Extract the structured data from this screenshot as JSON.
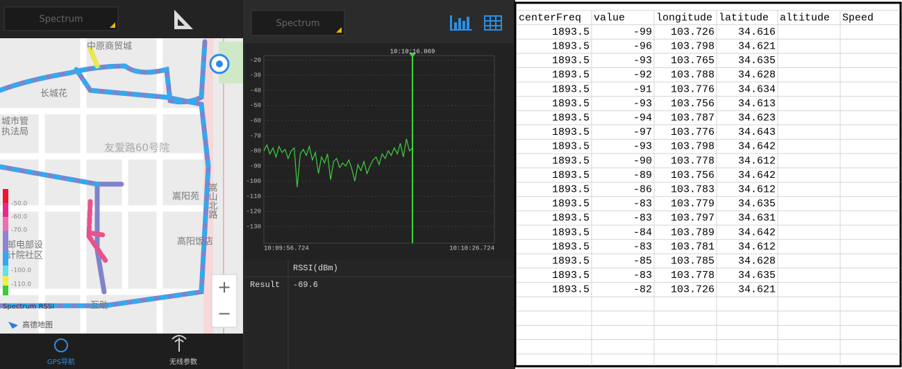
{
  "map_panel": {
    "dropdown": "Spectrum",
    "labels": [
      "中原商贸城",
      "长城花",
      "城市管",
      "执法局",
      "友爱路60号院",
      "嵩阳苑",
      "嵩山北路",
      "高阳饭店",
      "邮电部设",
      "计院社区",
      "互助"
    ],
    "legend": {
      "title": "Spectrum RSSI",
      "labels": [
        "-50.0",
        "-60.0",
        "-70.0",
        "-100.0",
        "-110.0"
      ]
    },
    "provider": "高德地图",
    "nav": [
      "GPS导航",
      "无线参数"
    ]
  },
  "spectrum_panel": {
    "dropdown": "Spectrum",
    "chart_data": {
      "type": "line",
      "color": "#3fd13f",
      "ylim": [
        -141,
        -17
      ],
      "yticks": [
        -20,
        -30,
        -40,
        -50,
        -60,
        -70,
        -80,
        -90,
        -100,
        -110,
        -120,
        -130
      ],
      "grid": true,
      "x_labels": [
        "10:09:56.724",
        "10:10:26.724"
      ],
      "marker": {
        "label": "10:10:16.069"
      },
      "values": [
        -80,
        -76,
        -82,
        -78,
        -84,
        -77,
        -81,
        -79,
        -85,
        -80,
        -78,
        -104,
        -82,
        -79,
        -83,
        -77,
        -86,
        -81,
        -95,
        -84,
        -88,
        -82,
        -99,
        -87,
        -85,
        -91,
        -88,
        -90,
        -86,
        -92,
        -100,
        -89,
        -93,
        -87,
        -95,
        -90,
        -86,
        -84,
        -89,
        -82,
        -85,
        -80,
        -83,
        -78,
        -82,
        -75,
        -84,
        -72,
        -80,
        -78
      ]
    },
    "result_table": {
      "header": "RSSI(dBm)",
      "label": "Result",
      "value": -69.6
    }
  },
  "spreadsheet": {
    "columns": [
      "centerFreq",
      "value",
      "longitude",
      "latitude",
      "altitude",
      "Speed"
    ],
    "rows": [
      [
        1893.5,
        -99,
        103.726,
        34.616
      ],
      [
        1893.5,
        -96,
        103.798,
        34.621
      ],
      [
        1893.5,
        -93,
        103.765,
        34.635
      ],
      [
        1893.5,
        -92,
        103.788,
        34.628
      ],
      [
        1893.5,
        -91,
        103.776,
        34.634
      ],
      [
        1893.5,
        -93,
        103.756,
        34.613
      ],
      [
        1893.5,
        -94,
        103.787,
        34.623
      ],
      [
        1893.5,
        -97,
        103.776,
        34.643
      ],
      [
        1893.5,
        -93,
        103.798,
        34.642
      ],
      [
        1893.5,
        -90,
        103.778,
        34.612
      ],
      [
        1893.5,
        -89,
        103.756,
        34.642
      ],
      [
        1893.5,
        -86,
        103.783,
        34.612
      ],
      [
        1893.5,
        -83,
        103.779,
        34.635
      ],
      [
        1893.5,
        -83,
        103.797,
        34.631
      ],
      [
        1893.5,
        -84,
        103.789,
        34.642
      ],
      [
        1893.5,
        -83,
        103.781,
        34.612
      ],
      [
        1893.5,
        -85,
        103.785,
        34.628
      ],
      [
        1893.5,
        -83,
        103.778,
        34.635
      ],
      [
        1893.5,
        -82,
        103.726,
        34.621
      ]
    ]
  }
}
